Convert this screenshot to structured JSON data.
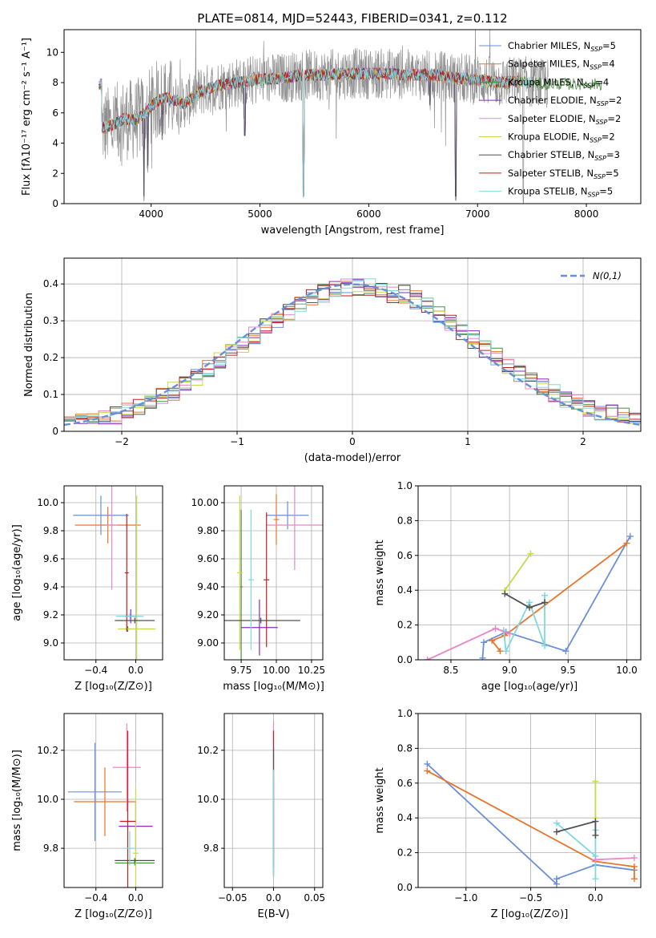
{
  "colors": [
    "#6a8fd6",
    "#e8742a",
    "#4c8c44",
    "#8a2bb8",
    "#e888c8",
    "#c8d84c",
    "#505050",
    "#c41c1c",
    "#7fd8e0",
    "#909090"
  ],
  "chart_data": [
    {
      "id": "spectrum",
      "type": "line",
      "title": "PLATE=0814, MJD=52443, FIBERID=0341, z=0.112",
      "xlabel": "wavelength [Angstrom, rest frame]",
      "ylabel": "Flux [fλ10⁻¹⁷ erg cm⁻² s⁻¹ A⁻¹]",
      "xlim": [
        3200,
        8500
      ],
      "ylim": [
        0,
        11.5
      ],
      "xticks": [
        4000,
        5000,
        6000,
        7000,
        8000
      ],
      "yticks": [
        0,
        2,
        4,
        6,
        8,
        10
      ],
      "continuum": [
        [
          3550,
          5.0
        ],
        [
          3650,
          5.2
        ],
        [
          3750,
          5.6
        ],
        [
          3850,
          5.5
        ],
        [
          3950,
          6.0
        ],
        [
          4050,
          6.8
        ],
        [
          4150,
          7.0
        ],
        [
          4300,
          6.6
        ],
        [
          4450,
          7.4
        ],
        [
          4600,
          7.8
        ],
        [
          4800,
          8.0
        ],
        [
          5000,
          8.2
        ],
        [
          5200,
          8.3
        ],
        [
          5400,
          8.5
        ],
        [
          5600,
          8.5
        ],
        [
          5800,
          8.6
        ],
        [
          6000,
          8.6
        ],
        [
          6200,
          8.6
        ],
        [
          6400,
          8.5
        ],
        [
          6600,
          8.5
        ],
        [
          6800,
          8.3
        ],
        [
          7000,
          8.2
        ],
        [
          7200,
          8.0
        ],
        [
          7400,
          8.1
        ],
        [
          7600,
          7.9
        ]
      ],
      "models_xmax": [
        7200,
        7400,
        8150,
        7400,
        7300,
        7400,
        7400,
        7400,
        7500
      ],
      "absorption_features": [
        [
          3934,
          0
        ],
        [
          3969,
          2
        ],
        [
          4102,
          4
        ],
        [
          4861,
          4
        ],
        [
          5400,
          0
        ],
        [
          6563,
          6
        ],
        [
          6800,
          0
        ],
        [
          7420,
          0
        ]
      ],
      "legend": [
        {
          "label": "Chabrier MILES, Nₛₛₚ=5",
          "base": "Chabrier MILES, N",
          "sub": "SSP",
          "tail": "=5"
        },
        {
          "label": "Salpeter MILES, Nₛₛₚ=4",
          "base": "Salpeter MILES, N",
          "sub": "SSP",
          "tail": "=4"
        },
        {
          "label": "Kroupa MILES, Nₛₛₚ=4",
          "base": "Kroupa MILES, N",
          "sub": "SSP",
          "tail": "=4"
        },
        {
          "label": "Chabrier ELODIE, Nₛₛₚ=2",
          "base": "Chabrier ELODIE, N",
          "sub": "SSP",
          "tail": "=2"
        },
        {
          "label": "Salpeter ELODIE, Nₛₛₚ=2",
          "base": "Salpeter ELODIE, N",
          "sub": "SSP",
          "tail": "=2"
        },
        {
          "label": "Kroupa ELODIE, Nₛₛₚ=2",
          "base": "Kroupa ELODIE, N",
          "sub": "SSP",
          "tail": "=2"
        },
        {
          "label": "Chabrier STELIB, Nₛₛₚ=3",
          "base": "Chabrier STELIB, N",
          "sub": "SSP",
          "tail": "=3"
        },
        {
          "label": "Salpeter STELIB, Nₛₛₚ=5",
          "base": "Salpeter STELIB, N",
          "sub": "SSP",
          "tail": "=5"
        },
        {
          "label": "Kroupa STELIB, Nₛₛₚ=5",
          "base": "Kroupa STELIB, N",
          "sub": "SSP",
          "tail": "=5"
        }
      ]
    },
    {
      "id": "histogram",
      "type": "line",
      "xlabel": "(data-model)/error",
      "ylabel": "Normed distribution",
      "xlim": [
        -2.5,
        2.5
      ],
      "ylim": [
        0,
        0.47
      ],
      "xticks": [
        -2,
        -1,
        0,
        1,
        2
      ],
      "yticks": [
        0.0,
        0.1,
        0.2,
        0.3,
        0.4
      ],
      "legend": "N(0,1)",
      "bin_edges_start": -2.5,
      "bin_width": 0.1
    },
    {
      "id": "age-z",
      "type": "scatter",
      "xlabel": "Z [log₁₀(Z/Z⊙)]",
      "ylabel": "age  [log₁₀(age/yr)]",
      "xlim": [
        -0.72,
        0.27
      ],
      "ylim": [
        8.88,
        10.12
      ],
      "xticks": [
        -0.4,
        0.0
      ],
      "yticks": [
        9.0,
        9.2,
        9.4,
        9.6,
        9.8,
        10.0
      ],
      "points": [
        {
          "x": -0.35,
          "y": 9.91,
          "xerr": 0.28,
          "yerr": 0.14,
          "c": 0
        },
        {
          "x": -0.28,
          "y": 9.84,
          "xerr": 0.33,
          "yerr": 0.13,
          "c": 1
        },
        {
          "x": -0.08,
          "y": 9.1,
          "xerr": 0.03,
          "yerr": 0.02,
          "c": 2
        },
        {
          "x": -0.05,
          "y": 9.19,
          "xerr": 0.06,
          "yerr": 0.05,
          "c": 3
        },
        {
          "x": -0.24,
          "y": 9.84,
          "xerr": 0.06,
          "yerr": 0.46,
          "c": 4
        },
        {
          "x": 0.01,
          "y": 9.1,
          "xerr": 0.19,
          "yerr": 0.95,
          "c": 5
        },
        {
          "x": -0.01,
          "y": 9.16,
          "xerr": 0.2,
          "yerr": 0.02,
          "c": 6
        },
        {
          "x": -0.09,
          "y": 9.5,
          "xerr": 0.02,
          "yerr": 0.42,
          "c": 7
        },
        {
          "x": -0.06,
          "y": 9.19,
          "xerr": 0.14,
          "yerr": 0.02,
          "c": 8
        }
      ]
    },
    {
      "id": "age-mass",
      "type": "scatter",
      "xlabel": "mass [log₁₀(M/M⊙)]",
      "ylabel": "",
      "xlim": [
        9.63,
        10.33
      ],
      "ylim": [
        8.88,
        10.12
      ],
      "xticks": [
        9.75,
        10.0,
        10.25
      ],
      "yticks": [
        9.0,
        9.2,
        9.4,
        9.6,
        9.8,
        10.0
      ],
      "points": [
        {
          "x": 10.08,
          "y": 9.91,
          "xerr": 0.15,
          "yerr": 0.1,
          "c": 0
        },
        {
          "x": 10.0,
          "y": 9.88,
          "xerr": 0.02,
          "yerr": 0.18,
          "c": 1
        },
        {
          "x": 9.75,
          "y": 9.4,
          "xerr": 0.01,
          "yerr": 0.55,
          "c": 2
        },
        {
          "x": 9.88,
          "y": 9.11,
          "xerr": 0.13,
          "yerr": 0.2,
          "c": 3
        },
        {
          "x": 10.13,
          "y": 9.84,
          "xerr": 0.2,
          "yerr": 0.32,
          "c": 4
        },
        {
          "x": 9.74,
          "y": 9.5,
          "xerr": 0.02,
          "yerr": 0.55,
          "c": 5
        },
        {
          "x": 9.89,
          "y": 9.16,
          "xerr": 0.28,
          "yerr": 0.02,
          "c": 6
        },
        {
          "x": 9.93,
          "y": 9.45,
          "xerr": 0.02,
          "yerr": 0.48,
          "c": 7
        },
        {
          "x": 9.82,
          "y": 9.45,
          "xerr": 0.02,
          "yerr": 0.5,
          "c": 8
        }
      ]
    },
    {
      "id": "weight-age",
      "type": "line",
      "xlabel": "age  [log₁₀(age/yr)]",
      "ylabel": "mass weight",
      "xlim": [
        8.22,
        10.12
      ],
      "ylim": [
        0,
        1.0
      ],
      "xticks": [
        8.5,
        9.0,
        9.5,
        10.0
      ],
      "yticks": [
        0.0,
        0.2,
        0.4,
        0.6,
        0.8,
        1.0
      ],
      "series": [
        {
          "c": 0,
          "x": [
            10.03,
            9.48,
            8.97,
            8.78,
            8.77
          ],
          "y": [
            0.71,
            0.05,
            0.16,
            0.1,
            0.01
          ]
        },
        {
          "c": 1,
          "x": [
            10.0,
            8.96,
            8.85,
            8.92
          ],
          "y": [
            0.67,
            0.14,
            0.11,
            0.05
          ]
        },
        {
          "c": 8,
          "x": [
            9.3,
            9.3,
            9.17,
            8.97,
            8.95
          ],
          "y": [
            0.37,
            0.08,
            0.33,
            0.05,
            0.17
          ]
        },
        {
          "c": 5,
          "x": [
            9.18,
            8.96
          ],
          "y": [
            0.61,
            0.4
          ]
        },
        {
          "c": 6,
          "x": [
            8.96,
            9.17,
            9.3
          ],
          "y": [
            0.38,
            0.3,
            0.33
          ]
        },
        {
          "c": 4,
          "x": [
            8.3,
            8.88,
            9.0
          ],
          "y": [
            0.0,
            0.18,
            0.15
          ]
        }
      ]
    },
    {
      "id": "mass-z",
      "type": "scatter",
      "xlabel": "Z [log₁₀(Z/Z⊙)]",
      "ylabel": "mass [log₁₀(M/M⊙)]",
      "xlim": [
        -0.72,
        0.27
      ],
      "ylim": [
        9.64,
        10.35
      ],
      "xticks": [
        -0.4,
        0.0
      ],
      "yticks": [
        9.8,
        10.0,
        10.2
      ],
      "points": [
        {
          "x": -0.41,
          "y": 10.03,
          "xerr": 0.27,
          "yerr": 0.2,
          "c": 0
        },
        {
          "x": -0.31,
          "y": 9.99,
          "xerr": 0.31,
          "yerr": 0.14,
          "c": 1
        },
        {
          "x": -0.01,
          "y": 9.74,
          "xerr": 0.2,
          "yerr": 0.01,
          "c": 2
        },
        {
          "x": 0.0,
          "y": 9.89,
          "xerr": 0.17,
          "yerr": 0.1,
          "c": 3
        },
        {
          "x": -0.09,
          "y": 10.13,
          "xerr": 0.14,
          "yerr": 0.18,
          "c": 4
        },
        {
          "x": 0.0,
          "y": 9.78,
          "xerr": 0.03,
          "yerr": 0.27,
          "c": 5
        },
        {
          "x": -0.01,
          "y": 9.75,
          "xerr": 0.2,
          "yerr": 0.01,
          "c": 6
        },
        {
          "x": -0.08,
          "y": 9.91,
          "xerr": 0.08,
          "yerr": 0.37,
          "c": 7
        },
        {
          "x": -0.06,
          "y": 9.8,
          "xerr": 0.06,
          "yerr": 0.07,
          "c": 8
        }
      ]
    },
    {
      "id": "mass-ebv",
      "type": "scatter",
      "xlabel": "E(B-V)",
      "ylabel": "",
      "xlim": [
        -0.06,
        0.06
      ],
      "ylim": [
        9.64,
        10.35
      ],
      "xticks": [
        -0.05,
        0.0,
        0.05
      ],
      "yticks": [
        9.8,
        10.0,
        10.2
      ],
      "points": [
        {
          "x": 0.0,
          "y": 10.0,
          "xerr": 0.0,
          "yerr": 0.32,
          "c": 4
        },
        {
          "x": 0.0,
          "y": 10.0,
          "xerr": 0.0,
          "yerr": 0.28,
          "c": 7
        },
        {
          "x": 0.0,
          "y": 9.95,
          "xerr": 0.0,
          "yerr": 0.26,
          "c": 6
        },
        {
          "x": 0.0,
          "y": 9.9,
          "xerr": 0.0,
          "yerr": 0.22,
          "c": 8
        }
      ]
    },
    {
      "id": "weight-z",
      "type": "line",
      "xlabel": "Z [log₁₀(Z/Z⊙)]",
      "ylabel": "mass weight",
      "xlim": [
        -1.37,
        0.35
      ],
      "ylim": [
        0,
        1.0
      ],
      "xticks": [
        -1.0,
        -0.5,
        0.0
      ],
      "yticks": [
        0.0,
        0.2,
        0.4,
        0.6,
        0.8,
        1.0
      ],
      "series": [
        {
          "c": 0,
          "x": [
            -1.3,
            -0.3,
            -0.3,
            0.0,
            0.3
          ],
          "y": [
            0.71,
            0.02,
            0.05,
            0.13,
            0.1
          ]
        },
        {
          "c": 1,
          "x": [
            -1.3,
            0.0,
            0.3,
            0.3
          ],
          "y": [
            0.67,
            0.15,
            0.12,
            0.05
          ]
        },
        {
          "c": 8,
          "x": [
            -0.3,
            0.0,
            0.0,
            0.0
          ],
          "y": [
            0.37,
            0.18,
            0.05,
            0.33
          ]
        },
        {
          "c": 5,
          "x": [
            0.0,
            0.0
          ],
          "y": [
            0.61,
            0.4
          ]
        },
        {
          "c": 6,
          "x": [
            -0.3,
            0.0,
            0.0
          ],
          "y": [
            0.32,
            0.38,
            0.3
          ]
        },
        {
          "c": 4,
          "x": [
            0.0,
            0.3
          ],
          "y": [
            0.16,
            0.17
          ]
        }
      ]
    }
  ]
}
